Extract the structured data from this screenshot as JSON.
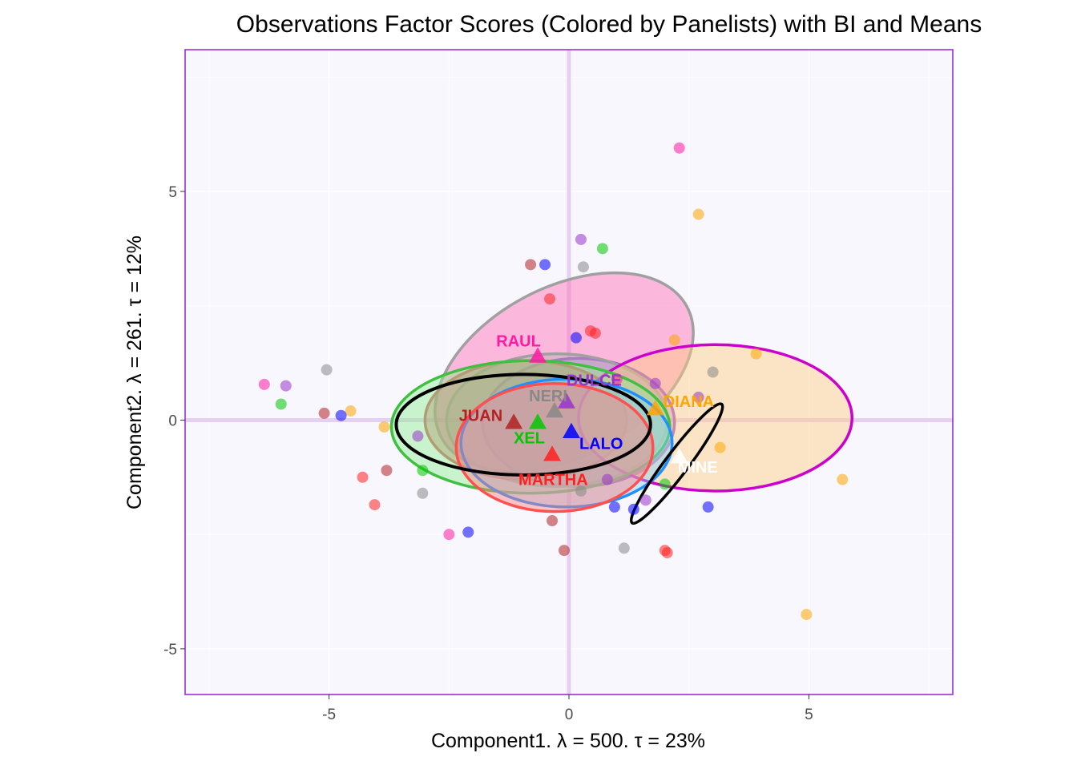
{
  "chart_data": {
    "type": "scatter",
    "title": "Observations Factor Scores (Colored by Panelists) with BI and Means",
    "xlabel": "Component1.   λ = 500.  τ = 23%",
    "ylabel": "Component2.   λ = 261.  τ = 12%",
    "xlim": [
      -8.0,
      8.0
    ],
    "ylim": [
      -6.0,
      8.1
    ],
    "xticks": [
      -5,
      0,
      5
    ],
    "yticks": [
      -5,
      0,
      5
    ],
    "xtick_labels": [
      "-5",
      "0",
      "5"
    ],
    "ytick_labels": [
      "-5",
      "0",
      "5"
    ],
    "background": "#f8f7fe",
    "border_color": "#9b30d0",
    "origin_line_color": "#e6d0f2",
    "panelists": [
      {
        "name": "RAUL",
        "color": "#ff1aa3",
        "mean": [
          -0.65,
          1.4
        ],
        "ellipse": {
          "cx": -0.1,
          "cy": 1.05,
          "rx": 2.9,
          "ry": 1.85,
          "angle": 28,
          "fill": "#ff69b4",
          "stroke": "#a0a0a0"
        },
        "points": [
          [
            -6.35,
            0.78
          ],
          [
            -2.5,
            -2.5
          ],
          [
            2.3,
            5.95
          ],
          [
            1.0,
            0.9
          ]
        ]
      },
      {
        "name": "DULCE",
        "color": "#9933cc",
        "mean": [
          -0.05,
          0.4
        ],
        "ellipse": {
          "cx": 0.2,
          "cy": -0.05,
          "rx": 2.0,
          "ry": 1.4,
          "angle": 0,
          "fill": "#b07fdc",
          "stroke": "#9b4fd0"
        },
        "points": [
          [
            -5.9,
            0.75
          ],
          [
            -3.15,
            -0.35
          ],
          [
            0.25,
            3.95
          ],
          [
            0.8,
            -1.3
          ],
          [
            1.6,
            -1.75
          ],
          [
            2.7,
            0.5
          ],
          [
            1.8,
            0.8
          ]
        ]
      },
      {
        "name": "NERI",
        "color": "#888888",
        "mean": [
          -0.3,
          0.2
        ],
        "ellipse": {
          "cx": -0.25,
          "cy": 0.0,
          "rx": 2.3,
          "ry": 1.45,
          "angle": 0,
          "fill": "#b3b3b3",
          "stroke": "#a0a0a0"
        },
        "points": [
          [
            -5.05,
            1.1
          ],
          [
            -3.05,
            -1.6
          ],
          [
            0.3,
            3.35
          ],
          [
            1.15,
            -2.8
          ],
          [
            3.0,
            1.05
          ],
          [
            0.25,
            -1.55
          ]
        ]
      },
      {
        "name": "JUAN",
        "color": "#b22222",
        "mean": [
          -1.15,
          -0.05
        ],
        "ellipse": {
          "cx": -0.9,
          "cy": 0.0,
          "rx": 2.1,
          "ry": 1.3,
          "angle": 0,
          "fill": "#cd5c5c",
          "stroke": "#cd5c5c"
        },
        "points": [
          [
            -5.1,
            0.15
          ],
          [
            -3.8,
            -1.1
          ],
          [
            -0.8,
            3.4
          ],
          [
            -0.1,
            -2.85
          ],
          [
            -0.35,
            -2.2
          ]
        ]
      },
      {
        "name": "DIANA",
        "color": "#ffa500",
        "mean": [
          1.8,
          0.25
        ],
        "ellipse": {
          "cx": 3.05,
          "cy": 0.05,
          "rx": 2.85,
          "ry": 1.6,
          "angle": 0,
          "fill": "#ffcc80",
          "stroke": "#cc00cc"
        },
        "points": [
          [
            -4.55,
            0.2
          ],
          [
            -3.85,
            -0.15
          ],
          [
            2.7,
            4.5
          ],
          [
            2.2,
            1.75
          ],
          [
            3.9,
            1.45
          ],
          [
            3.15,
            -0.6
          ],
          [
            5.7,
            -1.3
          ],
          [
            4.95,
            -4.25
          ]
        ]
      },
      {
        "name": "XEL",
        "color": "#00c800",
        "mean": [
          -0.65,
          -0.05
        ],
        "ellipse": {
          "cx": -0.8,
          "cy": -0.15,
          "rx": 2.9,
          "ry": 1.45,
          "angle": 0,
          "fill": "#90ee90",
          "stroke": "#40c040"
        },
        "points": [
          [
            -6.0,
            0.35
          ],
          [
            -3.05,
            -1.1
          ],
          [
            0.7,
            3.75
          ],
          [
            2.0,
            -1.4
          ]
        ]
      },
      {
        "name": "LALO",
        "color": "#0000ff",
        "mean": [
          0.05,
          -0.25
        ],
        "ellipse": {
          "cx": -0.05,
          "cy": -0.5,
          "rx": 2.2,
          "ry": 1.4,
          "angle": 0,
          "fill": "#87cefa",
          "stroke": "#1e90ff"
        },
        "points": [
          [
            -4.75,
            0.1
          ],
          [
            -2.1,
            -2.45
          ],
          [
            -0.5,
            3.4
          ],
          [
            0.15,
            1.8
          ],
          [
            0.95,
            -1.9
          ],
          [
            1.35,
            -1.95
          ],
          [
            2.9,
            -1.9
          ]
        ]
      },
      {
        "name": "MARTHA",
        "color": "#ff2020",
        "mean": [
          -0.35,
          -0.75
        ],
        "ellipse": {
          "cx": -0.3,
          "cy": -0.6,
          "rx": 2.05,
          "ry": 1.4,
          "angle": 0,
          "fill": "#ff8080",
          "stroke": "#ff5050"
        },
        "points": [
          [
            -4.3,
            -1.25
          ],
          [
            -4.05,
            -1.85
          ],
          [
            -0.4,
            2.65
          ],
          [
            0.55,
            1.9
          ],
          [
            2.0,
            -2.85
          ],
          [
            2.05,
            -2.9
          ],
          [
            0.45,
            1.95
          ]
        ]
      },
      {
        "name": "MINE",
        "color": "#ffffff",
        "mean": [
          2.3,
          -0.8
        ],
        "ellipse": {
          "cx": 2.25,
          "cy": -0.95,
          "rx": 1.55,
          "ry": 0.25,
          "angle": 53,
          "fill": "#ffffff",
          "stroke": "#000000"
        },
        "points": []
      }
    ],
    "overall_ellipse": {
      "cx": -0.95,
      "cy": -0.1,
      "rx": 2.65,
      "ry": 1.1,
      "angle": 0,
      "stroke": "#000000"
    }
  }
}
